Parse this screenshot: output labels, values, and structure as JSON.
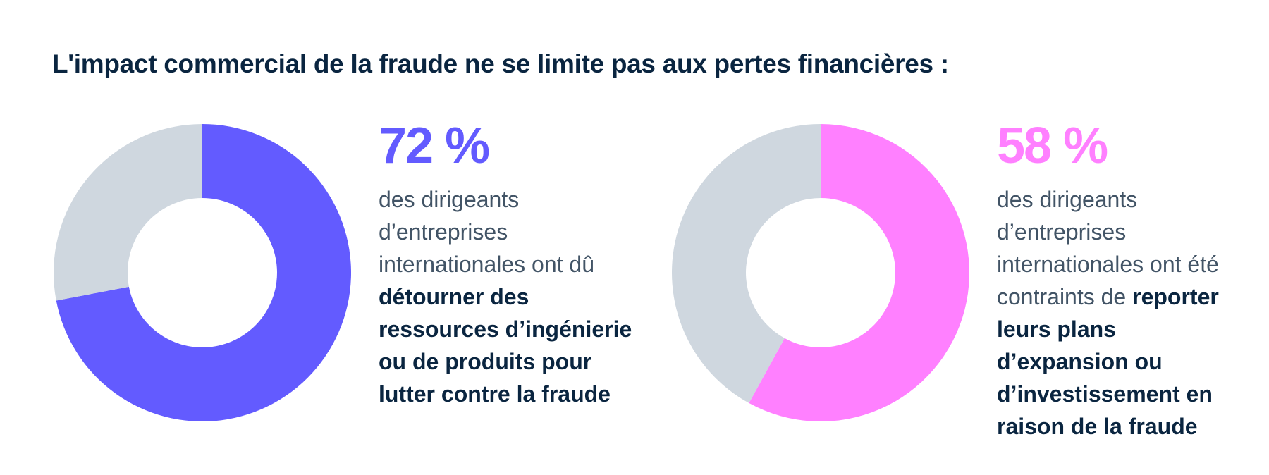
{
  "title": "L'impact commercial de la fraude ne se limite pas aux pertes financières :",
  "colors": {
    "remainder": "#cfd7df",
    "title": "#0a2540",
    "body": "#425466"
  },
  "chart_data": [
    {
      "type": "pie",
      "labels": [
        "72 %",
        ""
      ],
      "values": [
        72,
        28
      ],
      "colors": [
        "#635bff",
        "#cfd7df"
      ],
      "stat": {
        "value": "72 %",
        "text_plain": "des dirigeants d’entreprises internationales ont dû ",
        "text_bold": "détourner des ressources d’ingénierie ou de produits pour lutter contre la fraude"
      }
    },
    {
      "type": "pie",
      "labels": [
        "58 %",
        ""
      ],
      "values": [
        58,
        42
      ],
      "colors": [
        "#ff80ff",
        "#cfd7df"
      ],
      "stat": {
        "value": "58 %",
        "text_plain": "des dirigeants d’entreprises internationales ont été contraints de ",
        "text_bold": "reporter leurs plans d’expansion ou d’investissement en raison de la fraude"
      }
    }
  ]
}
